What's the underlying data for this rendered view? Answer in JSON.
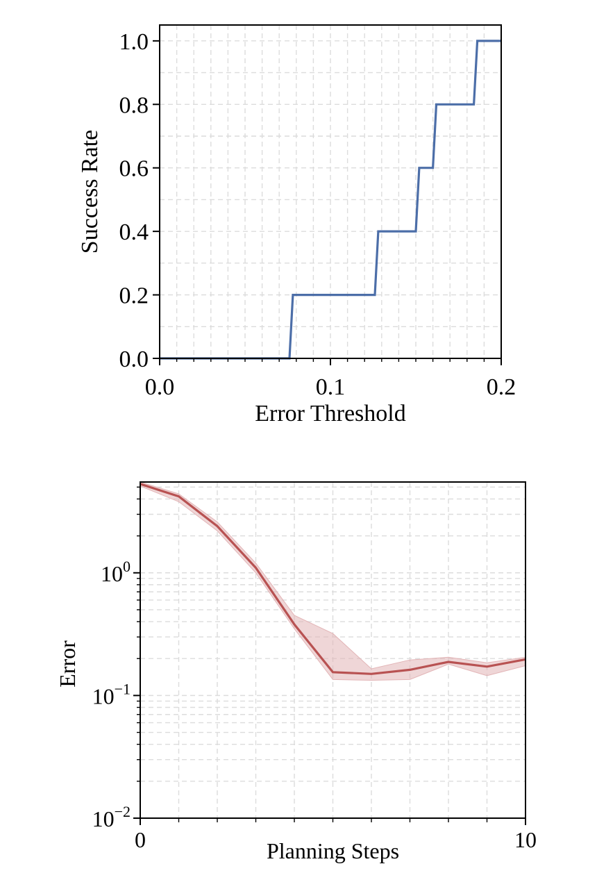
{
  "chart_data": [
    {
      "type": "line",
      "step": true,
      "xlabel": "Error Threshold",
      "ylabel": "Success Rate",
      "xlim": [
        0,
        0.2
      ],
      "ylim": [
        0,
        1.05
      ],
      "xticks": [
        0,
        0.1,
        0.2
      ],
      "xtick_labels": [
        "0.0",
        "0.1",
        "0.2"
      ],
      "yticks": [
        0,
        0.2,
        0.4,
        0.6,
        0.8,
        1.0
      ],
      "ytick_labels": [
        "0.0",
        "0.2",
        "0.4",
        "0.6",
        "0.8",
        "1.0"
      ],
      "grid": true,
      "color": "#4c6ea8",
      "series": [
        {
          "x": [
            0.0,
            0.076,
            0.078,
            0.126,
            0.128,
            0.15,
            0.152,
            0.16,
            0.162,
            0.184,
            0.186,
            0.2
          ],
          "y": [
            0.0,
            0.0,
            0.2,
            0.2,
            0.4,
            0.4,
            0.6,
            0.6,
            0.8,
            0.8,
            1.0,
            1.0
          ]
        }
      ]
    },
    {
      "type": "line",
      "yscale": "log",
      "xlabel": "Planning Steps",
      "ylabel": "Error",
      "xlim": [
        0,
        10
      ],
      "ylim": [
        0.01,
        5.5
      ],
      "xticks": [
        0,
        10
      ],
      "xtick_labels": [
        "0",
        "10"
      ],
      "yticks": [
        0.01,
        0.1,
        1
      ],
      "ytick_labels": [
        {
          "base": "10",
          "exp": "−2"
        },
        {
          "base": "10",
          "exp": "−1"
        },
        {
          "base": "10",
          "exp": "0"
        }
      ],
      "grid": true,
      "color": "#b85252",
      "band_color": "#e2b4b6",
      "series": [
        {
          "x": [
            0,
            1,
            2,
            3,
            4,
            5,
            6,
            7,
            8,
            9,
            10
          ],
          "y": [
            5.3,
            4.2,
            2.4,
            1.1,
            0.38,
            0.155,
            0.15,
            0.162,
            0.188,
            0.172,
            0.197
          ],
          "y_low": [
            5.1,
            3.8,
            2.2,
            1.0,
            0.35,
            0.135,
            0.133,
            0.135,
            0.18,
            0.145,
            0.175
          ],
          "y_high": [
            5.5,
            4.4,
            2.6,
            1.2,
            0.45,
            0.32,
            0.165,
            0.195,
            0.205,
            0.185,
            0.205
          ]
        }
      ]
    }
  ]
}
